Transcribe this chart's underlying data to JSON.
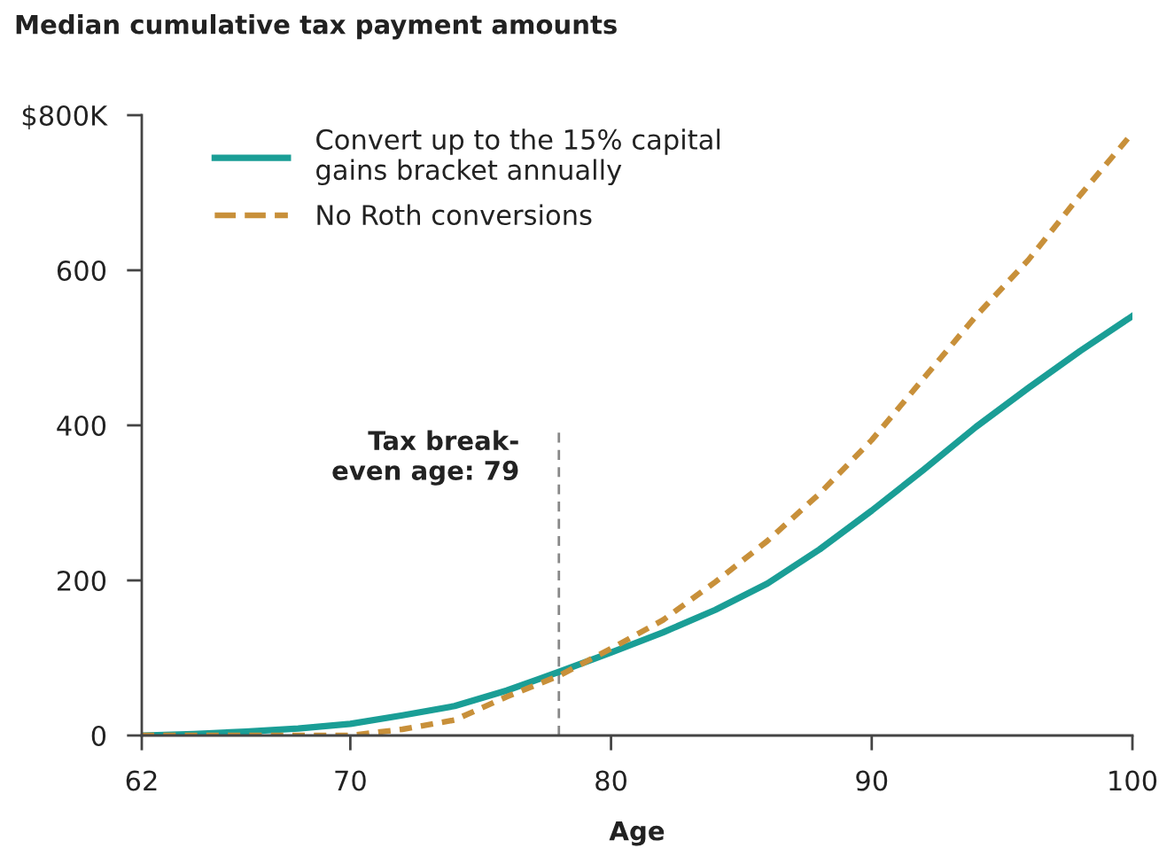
{
  "chart_data": {
    "type": "line",
    "title": "Median cumulative tax payment amounts",
    "xlabel": "Age",
    "x": [
      62,
      64,
      66,
      68,
      70,
      72,
      74,
      76,
      78,
      80,
      82,
      84,
      86,
      88,
      90,
      92,
      94,
      96,
      98,
      100
    ],
    "series": [
      {
        "name": "Convert up to the 15% capital\ngains bracket annually",
        "color": "#1a9e96",
        "line_style": "solid",
        "values": [
          0,
          2,
          5,
          9,
          15,
          26,
          38,
          58,
          82,
          107,
          133,
          162,
          196,
          240,
          290,
          343,
          398,
          448,
          496,
          541
        ]
      },
      {
        "name": "No Roth conversions",
        "color": "#c8903a",
        "line_style": "dashed",
        "values": [
          0,
          0,
          0,
          0,
          0,
          8,
          20,
          50,
          77,
          112,
          149,
          198,
          251,
          312,
          381,
          461,
          541,
          613,
          697,
          777
        ]
      }
    ],
    "xlim": [
      62,
      100
    ],
    "xticks": [
      62,
      70,
      80,
      90,
      100
    ],
    "ylim": [
      0,
      800
    ],
    "yticks": [
      0,
      200,
      400,
      600,
      {
        "value": 800,
        "label": "$800K"
      }
    ],
    "ref_lines": [
      {
        "axis": "x",
        "value": 78,
        "color": "#888888",
        "line_style": "dashed"
      }
    ],
    "annotations": [
      "Tax break-\neven age: 79"
    ],
    "grid": false,
    "legend": "top left",
    "marker": "none"
  }
}
